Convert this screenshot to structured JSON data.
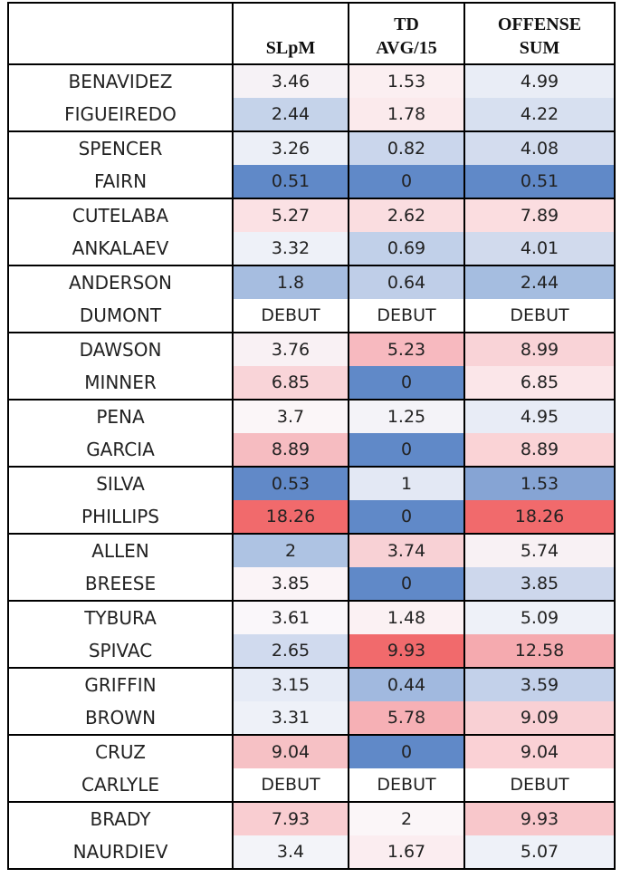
{
  "header": {
    "col0": "",
    "col1": "SLpM",
    "col2_line1": "TD",
    "col2_line2": "AVG/15",
    "col3_line1": "OFFENSE",
    "col3_line2": "SUM"
  },
  "rows": [
    {
      "name": "BENAVIDEZ",
      "slpm": "3.46",
      "td": "1.53",
      "sum": "4.99",
      "slpm_color": "#f6f2f6",
      "td_color": "#fbeff1",
      "sum_color": "#e9edf6",
      "group_top": true
    },
    {
      "name": "FIGUEIREDO",
      "slpm": "2.44",
      "td": "1.78",
      "sum": "4.22",
      "slpm_color": "#c5d3ea",
      "td_color": "#fbeaec",
      "sum_color": "#d7e0f0",
      "group_top": false
    },
    {
      "name": "SPENCER",
      "slpm": "3.26",
      "td": "0.82",
      "sum": "4.08",
      "slpm_color": "#eceff7",
      "td_color": "#cad6ec",
      "sum_color": "#d3dcee",
      "group_top": true
    },
    {
      "name": "FAIRN",
      "slpm": "0.51",
      "td": "0",
      "sum": "0.51",
      "slpm_color": "#6089c8",
      "td_color": "#6089c8",
      "sum_color": "#6089c8",
      "group_top": false
    },
    {
      "name": "CUTELABA",
      "slpm": "5.27",
      "td": "2.62",
      "sum": "7.89",
      "slpm_color": "#fbe1e4",
      "td_color": "#fadde0",
      "sum_color": "#fbdde0",
      "group_top": true
    },
    {
      "name": "ANKALAEV",
      "slpm": "3.32",
      "td": "0.69",
      "sum": "4.01",
      "slpm_color": "#eef1f8",
      "td_color": "#c1d0e9",
      "sum_color": "#d1daed",
      "group_top": false
    },
    {
      "name": "ANDERSON",
      "slpm": "1.8",
      "td": "0.64",
      "sum": "2.44",
      "slpm_color": "#a6bde0",
      "td_color": "#bfcee8",
      "sum_color": "#a5bde0",
      "group_top": true
    },
    {
      "name": "DUMONT",
      "slpm": "DEBUT",
      "td": "DEBUT",
      "sum": "DEBUT",
      "slpm_color": "#ffffff",
      "td_color": "#ffffff",
      "sum_color": "#ffffff",
      "group_top": false
    },
    {
      "name": "DAWSON",
      "slpm": "3.76",
      "td": "5.23",
      "sum": "8.99",
      "slpm_color": "#f9f1f4",
      "td_color": "#f7b9bf",
      "sum_color": "#f9d3d7",
      "group_top": true
    },
    {
      "name": "MINNER",
      "slpm": "6.85",
      "td": "0",
      "sum": "6.85",
      "slpm_color": "#f9d4d8",
      "td_color": "#6089c8",
      "sum_color": "#fbe6e9",
      "group_top": false
    },
    {
      "name": "PENA",
      "slpm": "3.7",
      "td": "1.25",
      "sum": "4.95",
      "slpm_color": "#fbf6f8",
      "td_color": "#f4f3f8",
      "sum_color": "#e8ecf6",
      "group_top": true
    },
    {
      "name": "GARCIA",
      "slpm": "8.89",
      "td": "0",
      "sum": "8.89",
      "slpm_color": "#f6bcc1",
      "td_color": "#6089c8",
      "sum_color": "#fad3d6",
      "group_top": false
    },
    {
      "name": "SILVA",
      "slpm": "0.53",
      "td": "1",
      "sum": "1.53",
      "slpm_color": "#6189c8",
      "td_color": "#e3e8f4",
      "sum_color": "#86a4d4",
      "group_top": true
    },
    {
      "name": "PHILLIPS",
      "slpm": "18.26",
      "td": "0",
      "sum": "18.26",
      "slpm_color": "#f16a6c",
      "td_color": "#6089c8",
      "sum_color": "#f16a6c",
      "group_top": false
    },
    {
      "name": "ALLEN",
      "slpm": "2",
      "td": "3.74",
      "sum": "5.74",
      "slpm_color": "#aec3e3",
      "td_color": "#f8d1d5",
      "sum_color": "#f8f1f4",
      "group_top": true
    },
    {
      "name": "BREESE",
      "slpm": "3.85",
      "td": "0",
      "sum": "3.85",
      "slpm_color": "#fbf4f7",
      "td_color": "#6089c8",
      "sum_color": "#cdd7ec",
      "group_top": false
    },
    {
      "name": "TYBURA",
      "slpm": "3.61",
      "td": "1.48",
      "sum": "5.09",
      "slpm_color": "#faf7fa",
      "td_color": "#fbf1f3",
      "sum_color": "#eef1f8",
      "group_top": true
    },
    {
      "name": "SPIVAC",
      "slpm": "2.65",
      "td": "9.93",
      "sum": "12.58",
      "slpm_color": "#d0daee",
      "td_color": "#f16a6c",
      "sum_color": "#f5aaaf",
      "group_top": false
    },
    {
      "name": "GRIFFIN",
      "slpm": "3.15",
      "td": "0.44",
      "sum": "3.59",
      "slpm_color": "#e6ebf6",
      "td_color": "#a1b9df",
      "sum_color": "#c3d1ea",
      "group_top": true
    },
    {
      "name": "BROWN",
      "slpm": "3.31",
      "td": "5.78",
      "sum": "9.09",
      "slpm_color": "#eef1f8",
      "td_color": "#f6b0b5",
      "sum_color": "#f9d0d4",
      "group_top": false
    },
    {
      "name": "CRUZ",
      "slpm": "9.04",
      "td": "0",
      "sum": "9.04",
      "slpm_color": "#f6c1c5",
      "td_color": "#6089c8",
      "sum_color": "#fad1d5",
      "group_top": true
    },
    {
      "name": "CARLYLE",
      "slpm": "DEBUT",
      "td": "DEBUT",
      "sum": "DEBUT",
      "slpm_color": "#ffffff",
      "td_color": "#ffffff",
      "sum_color": "#ffffff",
      "group_top": false
    },
    {
      "name": "BRADY",
      "slpm": "7.93",
      "td": "2",
      "sum": "9.93",
      "slpm_color": "#f9cdd1",
      "td_color": "#fbf6f8",
      "sum_color": "#f8c7cb",
      "group_top": true
    },
    {
      "name": "NAURDIEV",
      "slpm": "3.4",
      "td": "1.67",
      "sum": "5.07",
      "slpm_color": "#f3f4f9",
      "td_color": "#fbedf0",
      "sum_color": "#eef1f8",
      "group_top": false
    }
  ]
}
